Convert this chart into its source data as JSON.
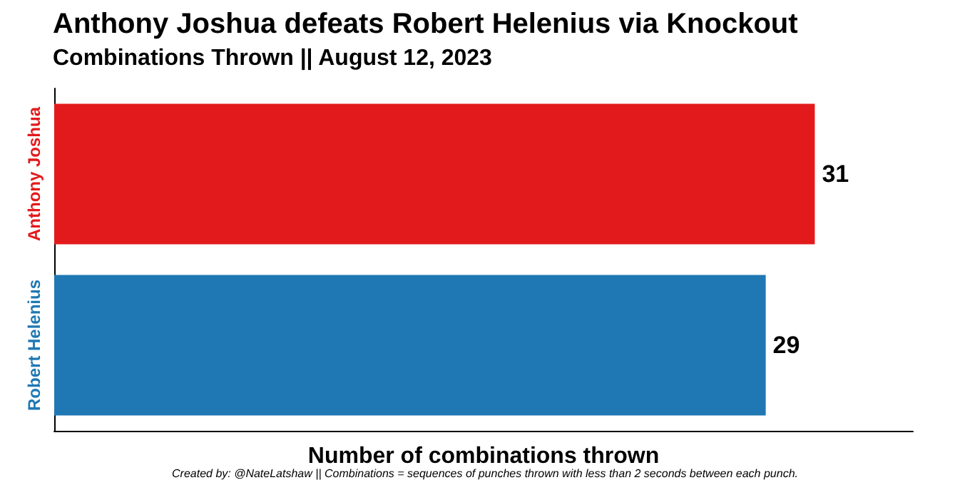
{
  "chart_data": {
    "type": "bar",
    "orientation": "horizontal",
    "title": "Anthony Joshua defeats Robert Helenius via Knockout",
    "subtitle": "Combinations Thrown || August 12, 2023",
    "xlabel": "Number of combinations thrown",
    "categories": [
      "Anthony Joshua",
      "Robert Helenius"
    ],
    "values": [
      31,
      29
    ],
    "colors": [
      "#e31a1c",
      "#1f78b4"
    ],
    "data_labels": true,
    "tick_labels": "y",
    "annotations": [
      "Created by: @NateLatshaw || Combinations = sequences of punches thrown with less than 2 seconds between each punch."
    ]
  }
}
